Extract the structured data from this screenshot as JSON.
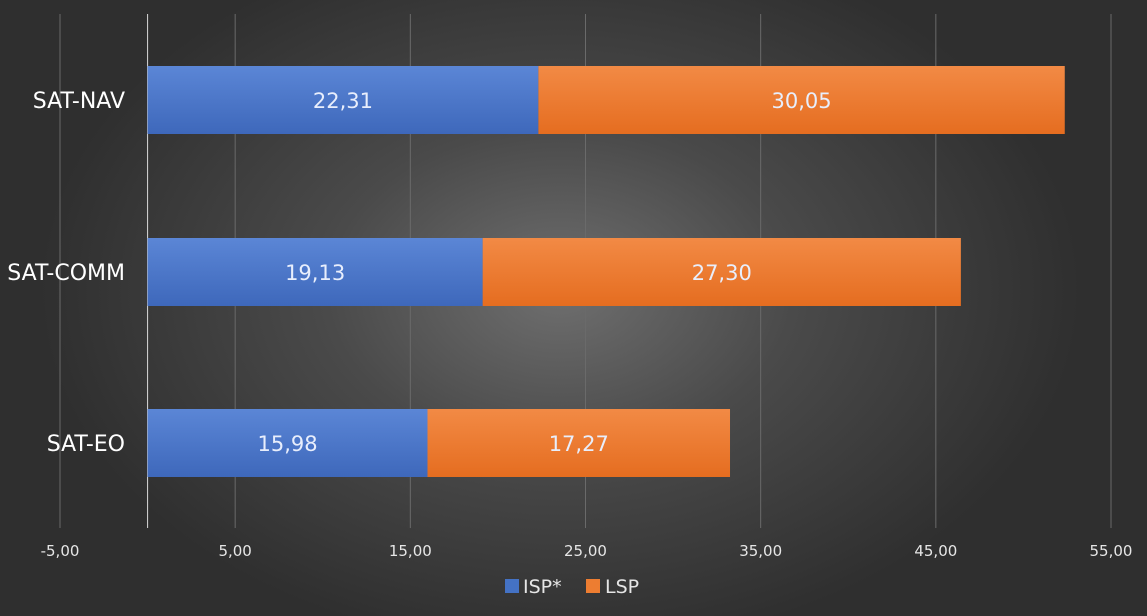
{
  "chart_data": {
    "type": "bar",
    "orientation": "horizontal",
    "stacked": true,
    "categories": [
      "SAT-NAV",
      "SAT-COMM",
      "SAT-EO"
    ],
    "series": [
      {
        "name": "ISP*",
        "values": [
          22.31,
          19.13,
          15.98
        ],
        "labels": [
          "22,31",
          "19,13",
          "15,98"
        ],
        "color": "#4472c4"
      },
      {
        "name": "LSP",
        "values": [
          30.05,
          27.3,
          17.27
        ],
        "labels": [
          "30,05",
          "27,30",
          "17,27"
        ],
        "color": "#ed7d31"
      }
    ],
    "xlim": [
      -5,
      55
    ],
    "xticks": [
      -5,
      5,
      15,
      25,
      35,
      45,
      55
    ],
    "xtick_labels": [
      "-5,00",
      "5,00",
      "15,00",
      "25,00",
      "35,00",
      "45,00",
      "55,00"
    ],
    "grid": true,
    "legend_position": "bottom"
  }
}
